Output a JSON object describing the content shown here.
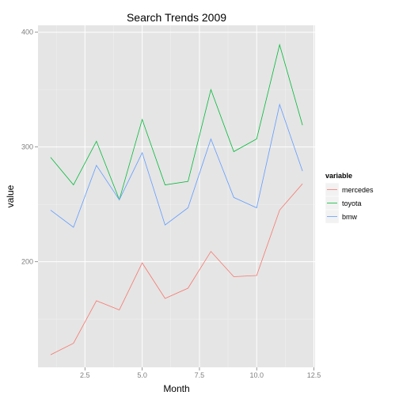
{
  "chart_data": {
    "type": "line",
    "title": "Search Trends 2009",
    "xlabel": "Month",
    "ylabel": "value",
    "x": [
      1,
      2,
      3,
      4,
      5,
      6,
      7,
      8,
      9,
      10,
      11,
      12
    ],
    "xlim": [
      0.45,
      12.55
    ],
    "ylim": [
      108,
      406
    ],
    "x_ticks": [
      2.5,
      5.0,
      7.5,
      10.0,
      12.5
    ],
    "x_tick_labels": [
      "2.5",
      "5.0",
      "7.5",
      "10.0",
      "12.5"
    ],
    "y_ticks": [
      200,
      300,
      400
    ],
    "y_tick_labels": [
      "200",
      "300",
      "400"
    ],
    "grid": true,
    "legend_title": "variable",
    "legend_position": "right",
    "series": [
      {
        "name": "mercedes",
        "color": "#F8766D",
        "values": [
          119,
          129,
          166,
          158,
          199,
          168,
          177,
          209,
          187,
          188,
          245,
          268
        ]
      },
      {
        "name": "toyota",
        "color": "#00BA38",
        "values": [
          291,
          267,
          305,
          254,
          324,
          267,
          270,
          350,
          296,
          307,
          389,
          319
        ]
      },
      {
        "name": "bmw",
        "color": "#619CFF",
        "values": [
          245,
          230,
          284,
          254,
          295,
          232,
          247,
          307,
          256,
          247,
          337,
          279
        ]
      }
    ]
  }
}
